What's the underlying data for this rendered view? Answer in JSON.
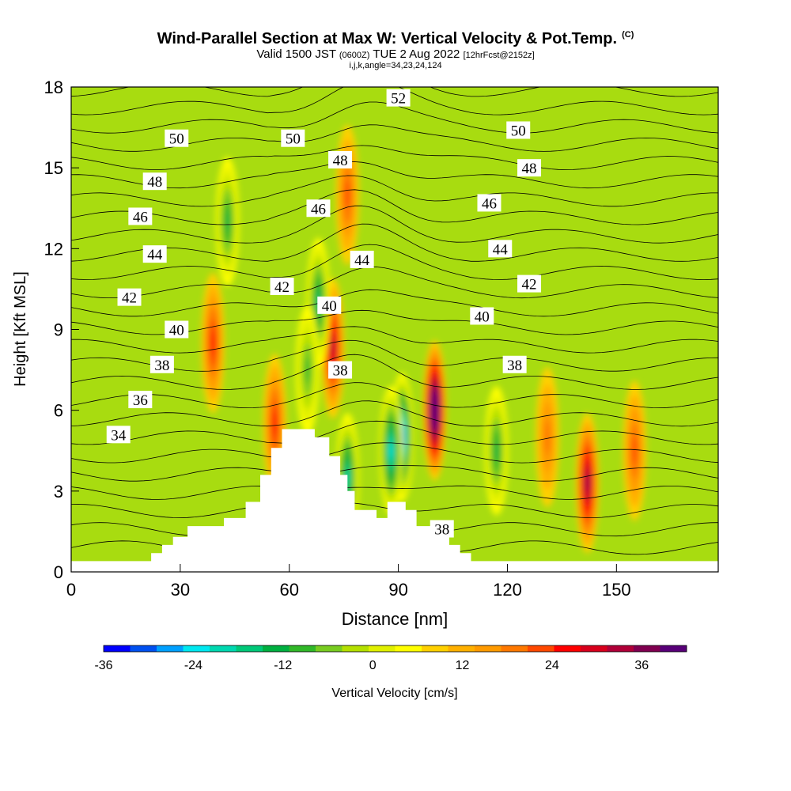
{
  "title": {
    "main": "Wind-Parallel Section at Max W: Vertical Velocity & Pot.Temp.",
    "copyright": "(C)",
    "valid_prefix": "Valid 1500 JST",
    "zulu": "(0600Z)",
    "valid_date": "TUE 2 Aug 2022",
    "fcst": "[12hrFcst@2152z]",
    "params": "i,j,k,angle=34,23,24,124"
  },
  "chart_data": {
    "type": "heatmap",
    "xlabel": "Distance [nm]",
    "ylabel": "Height [Kft MSL]",
    "xlim": [
      0,
      178
    ],
    "ylim": [
      0,
      18
    ],
    "x_ticks": [
      0,
      30,
      60,
      90,
      120,
      150
    ],
    "y_ticks": [
      0,
      3,
      6,
      9,
      12,
      15,
      18
    ],
    "colorbar": {
      "label": "Vertical Velocity [cm/s]",
      "range": [
        -36,
        42
      ],
      "step": 3,
      "tick_values": [
        -36,
        -24,
        -12,
        0,
        12,
        24,
        36
      ],
      "colors": [
        "#0000ff",
        "#0050f0",
        "#00a0ff",
        "#00e8f0",
        "#00d8b0",
        "#00c878",
        "#00b040",
        "#30b828",
        "#78cc20",
        "#b4e000",
        "#e0f000",
        "#ffff00",
        "#ffd000",
        "#ffb000",
        "#ff9a00",
        "#ff7800",
        "#ff4800",
        "#ff0000",
        "#d8001c",
        "#b00038",
        "#800050",
        "#580078"
      ]
    },
    "terrain_top_kft": [
      [
        0,
        0.4
      ],
      [
        22,
        0.4
      ],
      [
        22,
        0.7
      ],
      [
        25,
        0.7
      ],
      [
        25,
        1.0
      ],
      [
        28,
        1.0
      ],
      [
        28,
        1.3
      ],
      [
        32,
        1.3
      ],
      [
        32,
        1.7
      ],
      [
        42,
        1.7
      ],
      [
        42,
        2.0
      ],
      [
        48,
        2.0
      ],
      [
        48,
        2.6
      ],
      [
        52,
        2.6
      ],
      [
        52,
        3.6
      ],
      [
        55,
        3.6
      ],
      [
        55,
        4.6
      ],
      [
        58,
        4.6
      ],
      [
        58,
        5.3
      ],
      [
        67,
        5.3
      ],
      [
        67,
        5.0
      ],
      [
        71,
        5.0
      ],
      [
        71,
        4.3
      ],
      [
        74,
        4.3
      ],
      [
        74,
        3.6
      ],
      [
        76,
        3.6
      ],
      [
        76,
        3.0
      ],
      [
        78,
        3.0
      ],
      [
        78,
        2.3
      ],
      [
        84,
        2.3
      ],
      [
        84,
        2.0
      ],
      [
        87,
        2.0
      ],
      [
        87,
        2.6
      ],
      [
        92,
        2.6
      ],
      [
        92,
        2.3
      ],
      [
        95,
        2.3
      ],
      [
        95,
        1.7
      ],
      [
        100,
        1.7
      ],
      [
        100,
        1.3
      ],
      [
        104,
        1.3
      ],
      [
        104,
        1.0
      ],
      [
        107,
        1.0
      ],
      [
        107,
        0.7
      ],
      [
        110,
        0.7
      ],
      [
        110,
        0.4
      ],
      [
        178,
        0.4
      ]
    ],
    "potential_temperature_labels": [
      {
        "value": "34",
        "x": 13,
        "y": 5.1
      },
      {
        "value": "36",
        "x": 19,
        "y": 6.4
      },
      {
        "value": "38",
        "x": 25,
        "y": 7.7
      },
      {
        "value": "40",
        "x": 29,
        "y": 9.0
      },
      {
        "value": "42",
        "x": 16,
        "y": 10.2
      },
      {
        "value": "44",
        "x": 23,
        "y": 11.8
      },
      {
        "value": "46",
        "x": 19,
        "y": 13.2
      },
      {
        "value": "48",
        "x": 23,
        "y": 14.5
      },
      {
        "value": "50",
        "x": 29,
        "y": 16.1
      },
      {
        "value": "50",
        "x": 61,
        "y": 16.1
      },
      {
        "value": "52",
        "x": 90,
        "y": 17.6
      },
      {
        "value": "48",
        "x": 74,
        "y": 15.3
      },
      {
        "value": "46",
        "x": 68,
        "y": 13.5
      },
      {
        "value": "42",
        "x": 58,
        "y": 10.6
      },
      {
        "value": "40",
        "x": 71,
        "y": 9.9
      },
      {
        "value": "44",
        "x": 80,
        "y": 11.6
      },
      {
        "value": "38",
        "x": 74,
        "y": 7.5
      },
      {
        "value": "50",
        "x": 123,
        "y": 16.4
      },
      {
        "value": "48",
        "x": 126,
        "y": 15.0
      },
      {
        "value": "46",
        "x": 115,
        "y": 13.7
      },
      {
        "value": "44",
        "x": 118,
        "y": 12.0
      },
      {
        "value": "42",
        "x": 126,
        "y": 10.7
      },
      {
        "value": "40",
        "x": 113,
        "y": 9.5
      },
      {
        "value": "38",
        "x": 122,
        "y": 7.7
      },
      {
        "value": "38",
        "x": 102,
        "y": 1.6
      }
    ],
    "vertical_velocity_features": [
      {
        "sign": "up",
        "x": 100,
        "y": 6.0,
        "peak": 36
      },
      {
        "sign": "down",
        "x": 91,
        "y": 5.0,
        "peak": -30
      },
      {
        "sign": "down",
        "x": 88,
        "y": 4.5,
        "peak": -24
      },
      {
        "sign": "down",
        "x": 76,
        "y": 3.5,
        "peak": -21
      },
      {
        "sign": "up",
        "x": 72,
        "y": 8.3,
        "peak": 21
      },
      {
        "sign": "up",
        "x": 76,
        "y": 14.0,
        "peak": 12
      },
      {
        "sign": "up",
        "x": 39,
        "y": 8.5,
        "peak": 15
      },
      {
        "sign": "up",
        "x": 142,
        "y": 3.3,
        "peak": 24
      },
      {
        "sign": "up",
        "x": 155,
        "y": 4.5,
        "peak": 12
      },
      {
        "sign": "up",
        "x": 131,
        "y": 5.0,
        "peak": 10
      },
      {
        "sign": "up",
        "x": 56,
        "y": 5.5,
        "peak": 15
      },
      {
        "sign": "down",
        "x": 117,
        "y": 4.5,
        "peak": -15
      },
      {
        "sign": "down",
        "x": 43,
        "y": 13.0,
        "peak": -15
      },
      {
        "sign": "down",
        "x": 68,
        "y": 10.0,
        "peak": -18
      },
      {
        "sign": "down",
        "x": 65,
        "y": 7.5,
        "peak": -12
      }
    ]
  }
}
